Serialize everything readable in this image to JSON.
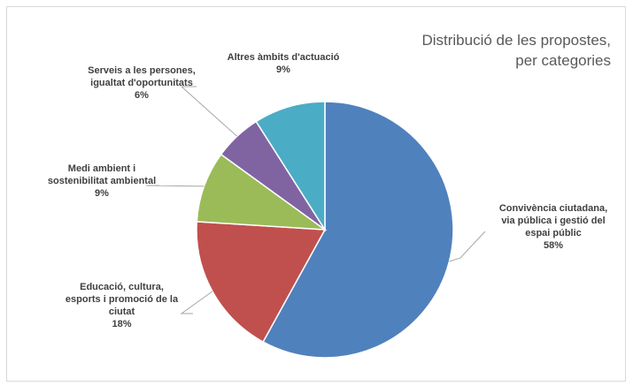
{
  "chart_data": {
    "type": "pie",
    "title_lines": [
      "Distribució de les propostes,",
      "per categories"
    ],
    "start_angle_deg": 0,
    "direction": "clockwise",
    "slices": [
      {
        "label_lines": [
          "Convivència ciutadana,",
          "via pública i gestió del",
          "espai públic"
        ],
        "value": 58,
        "value_text": "58%",
        "color": "#4f81bd"
      },
      {
        "label_lines": [
          "Educació, cultura,",
          "esports i promoció de la",
          "ciutat"
        ],
        "value": 18,
        "value_text": "18%",
        "color": "#c0504d"
      },
      {
        "label_lines": [
          "Medi ambient i",
          "sostenibilitat ambiental"
        ],
        "value": 9,
        "value_text": "9%",
        "color": "#9bbb59"
      },
      {
        "label_lines": [
          "Serveis a les persones,",
          "igualtat d'oportunitats"
        ],
        "value": 6,
        "value_text": "6%",
        "color": "#8064a2"
      },
      {
        "label_lines": [
          "Altres àmbits d'actuació"
        ],
        "value": 9,
        "value_text": "9%",
        "color": "#4bacc6"
      }
    ],
    "legend": "none"
  }
}
